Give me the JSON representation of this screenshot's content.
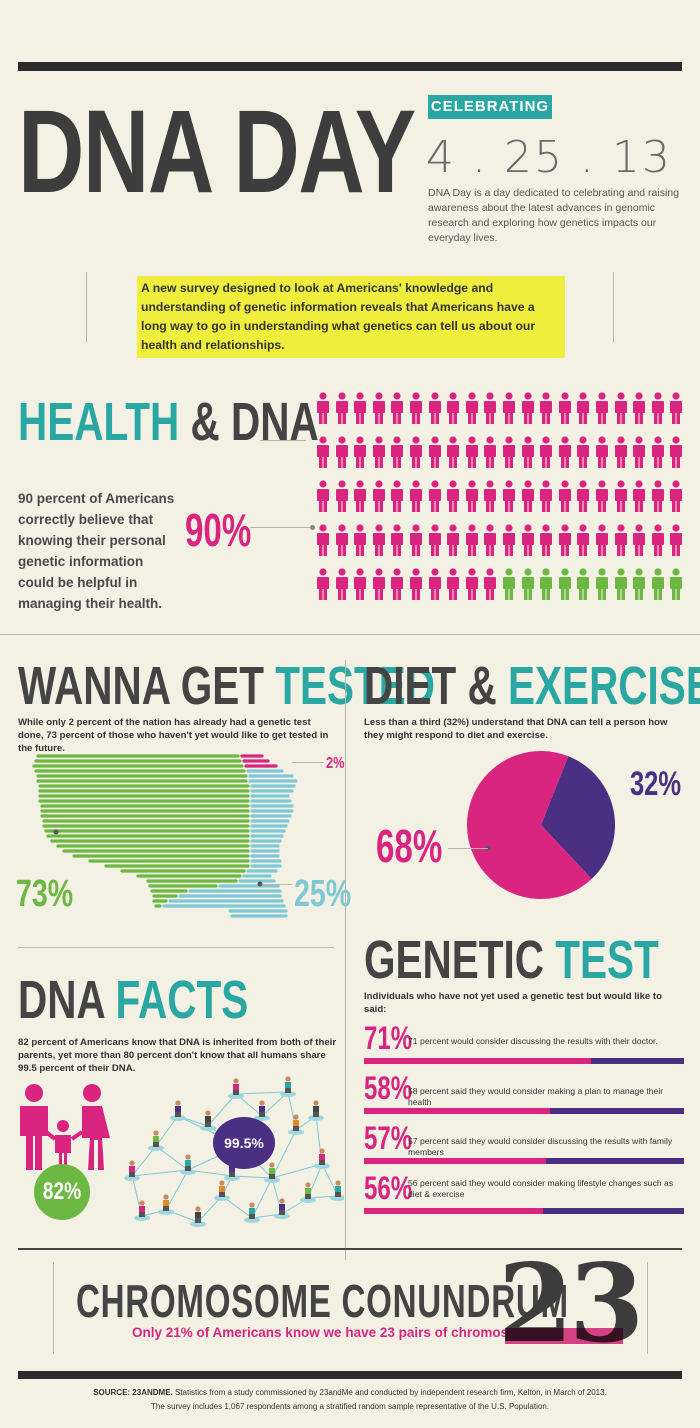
{
  "colors": {
    "magenta": "#d9257f",
    "teal": "#2aa7a2",
    "green": "#6db843",
    "purple": "#4a2f82",
    "light_blue": "#7fc9d6",
    "yellow": "#f0ee3c",
    "dark": "#444444",
    "background": "#f3f0e4"
  },
  "header": {
    "title": "DNA DAY",
    "badge": "CELEBRATING",
    "date": "4 . 25 . 13",
    "description": "DNA Day is a day dedicated to celebrating and raising awareness about the latest advances in genomic research and exploring how genetics impacts our everyday lives."
  },
  "intro": {
    "text": "A new survey designed to look at Americans' knowledge and understanding of genetic information reveals that Americans have a long way to go in understanding what genetics can tell us about our health and relationships."
  },
  "health": {
    "title_a": "HEALTH",
    "title_b": "& DNA",
    "text": "90 percent of Americans correctly believe that knowing their personal genetic information could be helpful in managing their health.",
    "percent": "90%",
    "total": 100,
    "highlighted": 90
  },
  "tested": {
    "title_a": "WANNA GET",
    "title_b": "TESTED",
    "text": "While only 2 percent of the nation has already had a genetic test done, 73 percent of those who haven't yet would like to get tested in the future.",
    "pct_small": "2%",
    "pct_green": "73%",
    "pct_blue": "25%"
  },
  "diet": {
    "title_a": "DIET &",
    "title_b": "EXERCISE",
    "text": "Less than a third (32%) understand that DNA can tell a person how they might respond to diet and exercise.",
    "pct_large": "68%",
    "pct_small": "32%"
  },
  "chart_data": {
    "type": "pie",
    "categories": [
      "68%",
      "32%"
    ],
    "values": [
      68,
      32
    ],
    "colors": [
      "#d9257f",
      "#4a2f82"
    ]
  },
  "facts": {
    "title_a": "DNA",
    "title_b": "FACTS",
    "text": "82 percent of Americans know that DNA is inherited from both of their parents, yet more than 80 percent don't know that all humans share 99.5 percent of their DNA.",
    "pct_parents": "82%",
    "pct_share": "99.5%"
  },
  "genetic_test": {
    "title_a": "GENETIC",
    "title_b": "TEST",
    "intro": "Individuals who have not yet used a genetic test but would like to said:",
    "items": [
      {
        "pct": "71%",
        "value": 71,
        "text": "71 percent would consider discussing the results with their doctor."
      },
      {
        "pct": "58%",
        "value": 58,
        "text": "58 percent said they would consider making a plan to manage their health"
      },
      {
        "pct": "57%",
        "value": 57,
        "text": "57 percent said they would consider discussing the results with family members"
      },
      {
        "pct": "56%",
        "value": 56,
        "text": "56 percent said they would consider making lifestyle changes such as diet & exercise"
      }
    ]
  },
  "chromosome": {
    "title": "CHROMOSOME CONUNDRUM",
    "text": "Only 21% of Americans know we have 23 pairs of chromosomes.",
    "number": "23"
  },
  "footer": {
    "line1_bold": "SOURCE: 23ANDME.",
    "line1": "Statistics from a study commissioned by 23andMe and conducted by independent research firm, Kelton, in March of 2013.",
    "line2": "The survey includes 1,067 respondents among a stratified random sample representative of the U.S. Population."
  }
}
